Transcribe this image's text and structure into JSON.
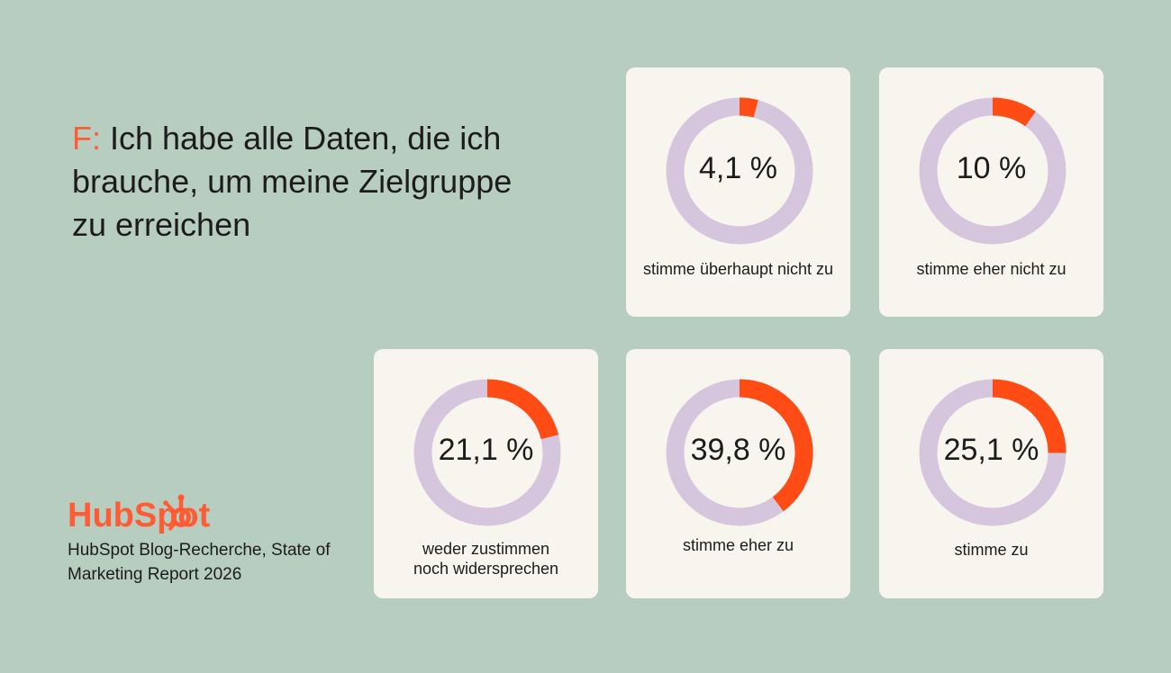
{
  "title": {
    "prefix": "F:",
    "text": " Ich habe alle Daten, die ich brauche, um meine Zielgruppe zu erreichen"
  },
  "colors": {
    "background": "#b7cdbf",
    "card": "#f8f5ef",
    "track": "#d6c6dd",
    "accent": "#ff4c14"
  },
  "chart_data": {
    "type": "pie",
    "variant": "donut",
    "categories": [
      "stimme überhaupt nicht zu",
      "stimme eher nicht zu",
      "weder zustimmen noch widersprechen",
      "stimme eher zu",
      "stimme zu"
    ],
    "values": [
      4.1,
      10,
      21.1,
      39.8,
      25.1
    ],
    "value_labels": [
      "4,1 %",
      "10 %",
      "21,1 %",
      "39,8 %",
      "25,1 %"
    ],
    "unit": "%"
  },
  "logo": {
    "text": "HubSpot",
    "icon": "hubspot-sprocket-icon"
  },
  "source": "HubSpot Blog-Recherche, State of Marketing Report 2026"
}
